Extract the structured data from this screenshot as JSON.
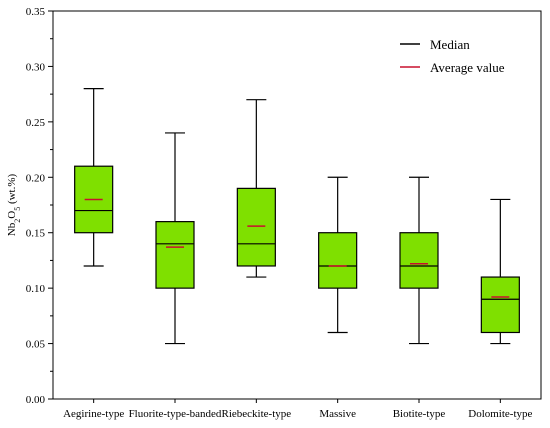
{
  "chart_data": {
    "type": "boxplot",
    "categories": [
      "Aegirine-type",
      "Fluorite-type-banded",
      "Riebeckite-type",
      "Massive",
      "Biotite-type",
      "Dolomite-type"
    ],
    "boxes": [
      {
        "min": 0.12,
        "q1": 0.15,
        "median": 0.17,
        "q3": 0.21,
        "max": 0.28,
        "mean": 0.18
      },
      {
        "min": 0.05,
        "q1": 0.1,
        "median": 0.14,
        "q3": 0.16,
        "max": 0.24,
        "mean": 0.137
      },
      {
        "min": 0.11,
        "q1": 0.12,
        "median": 0.14,
        "q3": 0.19,
        "max": 0.27,
        "mean": 0.156
      },
      {
        "min": 0.06,
        "q1": 0.1,
        "median": 0.12,
        "q3": 0.15,
        "max": 0.2,
        "mean": 0.12
      },
      {
        "min": 0.05,
        "q1": 0.1,
        "median": 0.12,
        "q3": 0.15,
        "max": 0.2,
        "mean": 0.122
      },
      {
        "min": 0.05,
        "q1": 0.06,
        "median": 0.09,
        "q3": 0.11,
        "max": 0.18,
        "mean": 0.092
      }
    ],
    "ylabel": {
      "prefix": "Nb",
      "sub1": "2",
      "mid": "O",
      "sub2": "5",
      "suffix": " (wt.%)"
    },
    "ylim": [
      0,
      0.35
    ],
    "yticks": [
      "0.00",
      "0.05",
      "0.10",
      "0.15",
      "0.20",
      "0.25",
      "0.30",
      "0.35"
    ],
    "legend": [
      {
        "label": "Median",
        "color": "#000000"
      },
      {
        "label": "Average value",
        "color": "#c8102e"
      }
    ],
    "legend_position": "top-right",
    "box_color": "#7fe000",
    "mean_color": "#c8102e",
    "grid": false
  }
}
